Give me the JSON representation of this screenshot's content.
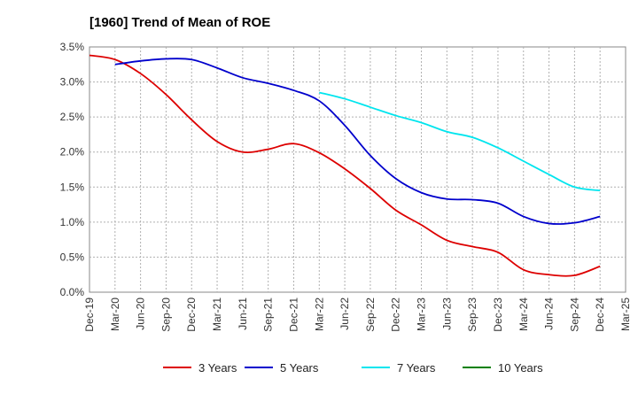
{
  "chart_data": {
    "type": "line",
    "title": "[1960]  Trend of Mean of ROE",
    "xlabel": "",
    "ylabel": "",
    "categories": [
      "Dec-19",
      "Mar-20",
      "Jun-20",
      "Sep-20",
      "Dec-20",
      "Mar-21",
      "Jun-21",
      "Sep-21",
      "Dec-21",
      "Mar-22",
      "Jun-22",
      "Sep-22",
      "Dec-22",
      "Mar-23",
      "Jun-23",
      "Sep-23",
      "Dec-23",
      "Mar-24",
      "Jun-24",
      "Sep-24",
      "Dec-24",
      "Mar-25"
    ],
    "y_ticks": [
      "0.0%",
      "0.5%",
      "1.0%",
      "1.5%",
      "2.0%",
      "2.5%",
      "3.0%",
      "3.5%"
    ],
    "ylim": [
      0,
      3.5
    ],
    "grid": true,
    "legend_position": "bottom",
    "series": [
      {
        "name": "3 Years",
        "color": "#dd0000",
        "values": [
          3.38,
          3.32,
          3.12,
          2.82,
          2.46,
          2.15,
          2.0,
          2.04,
          2.12,
          1.99,
          1.76,
          1.48,
          1.17,
          0.96,
          0.74,
          0.65,
          0.57,
          0.32,
          0.25,
          0.24,
          0.37,
          null
        ]
      },
      {
        "name": "5 Years",
        "color": "#0000cc",
        "values": [
          null,
          3.25,
          3.3,
          3.33,
          3.32,
          3.2,
          3.06,
          2.98,
          2.88,
          2.73,
          2.38,
          1.95,
          1.62,
          1.42,
          1.33,
          1.32,
          1.27,
          1.08,
          0.98,
          0.99,
          1.08,
          null
        ]
      },
      {
        "name": "7 Years",
        "color": "#00e5ee",
        "values": [
          null,
          null,
          null,
          null,
          null,
          null,
          null,
          null,
          null,
          2.85,
          2.76,
          2.64,
          2.52,
          2.42,
          2.29,
          2.21,
          2.06,
          1.87,
          1.68,
          1.5,
          1.45,
          null
        ]
      },
      {
        "name": "10 Years",
        "color": "#008000",
        "values": [
          null,
          null,
          null,
          null,
          null,
          null,
          null,
          null,
          null,
          null,
          null,
          null,
          null,
          null,
          null,
          null,
          null,
          null,
          null,
          null,
          null,
          null
        ]
      }
    ]
  }
}
